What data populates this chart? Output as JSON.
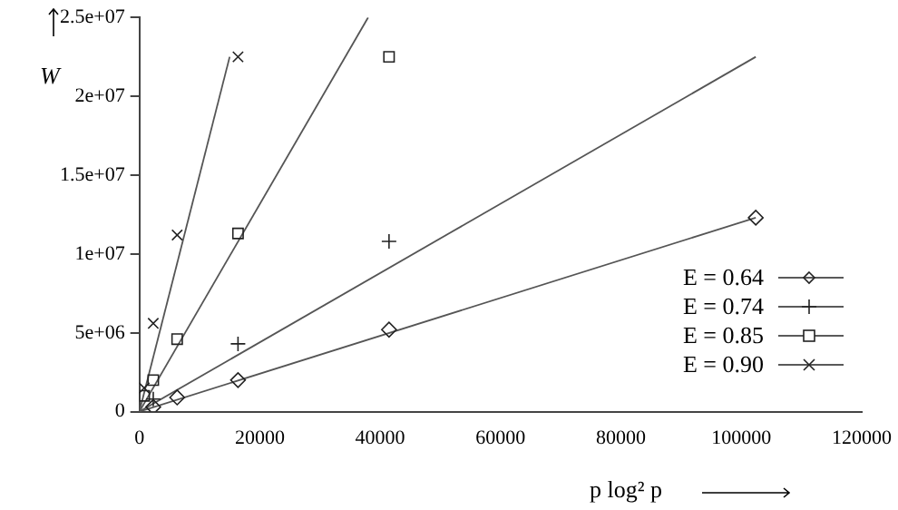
{
  "chart_data": {
    "type": "scatter",
    "xlabel": "p log² p",
    "ylabel": "W",
    "xlim": [
      0,
      120000
    ],
    "xticks": [
      0,
      20000,
      40000,
      60000,
      80000,
      100000,
      120000
    ],
    "ylim": [
      0,
      25000000
    ],
    "yticks": [
      0,
      {
        "value": 5000000,
        "label": "5e+06"
      },
      {
        "value": 10000000,
        "label": "1e+07"
      },
      {
        "value": 15000000,
        "label": "1.5e+07"
      },
      {
        "value": 20000000,
        "label": "2e+07"
      },
      {
        "value": 25000000,
        "label": "2.5e+07"
      }
    ],
    "grid": false,
    "legend": "bottom right",
    "series": [
      {
        "name": "E = 0.64",
        "color": "#222222",
        "marker": "diamond",
        "x": [
          2304,
          6272,
          16384,
          41472,
          102400
        ],
        "values": [
          300000,
          900000,
          2000000,
          5200000,
          12300000
        ]
      },
      {
        "name": "E = 0.74",
        "color": "#222222",
        "marker": "cross",
        "x": [
          2304,
          16384,
          41472
        ],
        "values": [
          800000,
          4300000,
          10800000
        ]
      },
      {
        "name": "E = 0.85",
        "color": "#222222",
        "marker": "square",
        "x": [
          800,
          2304,
          6272,
          16384,
          41472
        ],
        "values": [
          1000000,
          2000000,
          4600000,
          11300000,
          22500000
        ]
      },
      {
        "name": "E = 0.90",
        "color": "#222222",
        "marker": "x",
        "x": [
          800,
          2304,
          6272,
          16384
        ],
        "values": [
          1500000,
          5600000,
          11200000,
          22500000
        ]
      },
      {
        "type": "line",
        "color": "#555555",
        "marker": "none",
        "x": [
          0,
          102400
        ],
        "values": [
          0,
          12300000
        ]
      },
      {
        "type": "line",
        "color": "#555555",
        "marker": "none",
        "x": [
          0,
          102400
        ],
        "values": [
          0,
          22500000
        ]
      },
      {
        "type": "line",
        "color": "#555555",
        "marker": "none",
        "x": [
          0,
          38000
        ],
        "values": [
          0,
          25000000
        ]
      },
      {
        "type": "line",
        "color": "#555555",
        "marker": "none",
        "x": [
          0,
          15000
        ],
        "values": [
          0,
          22500000
        ]
      }
    ]
  }
}
